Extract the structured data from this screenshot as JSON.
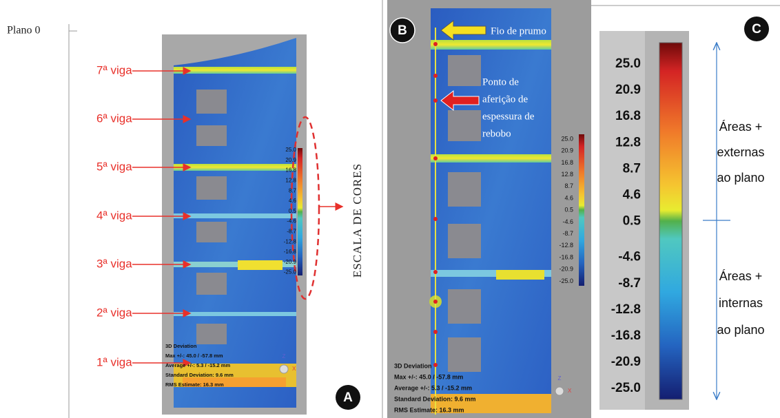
{
  "panel_a": {
    "plano": "Plano 0",
    "vigas": [
      "7ª viga",
      "6ª viga",
      "5ª viga",
      "4ª viga",
      "3ª viga",
      "2ª viga",
      "1ª viga"
    ],
    "scale_title": "ESCALA DE CORES",
    "label": "A"
  },
  "scale": [
    "25.0",
    "20.9",
    "16.8",
    "12.8",
    "8.7",
    "4.6",
    "0.5",
    "-4.6",
    "-8.7",
    "-12.8",
    "-16.8",
    "-20.9",
    "-25.0"
  ],
  "stats": [
    "3D Deviation",
    "Max +/-: 45.0 / -57.8 mm",
    "Average +/-: 5.3 / -15.2 mm",
    "Standard Deviation: 9.6 mm",
    "RMS Estimate: 16.3 mm"
  ],
  "axes": [
    "Z",
    "X"
  ],
  "panel_b": {
    "label": "B",
    "plumb": "Fio de prumo",
    "point": [
      "Ponto de",
      "aferição de",
      "espessura de",
      "rebobo"
    ]
  },
  "panel_c": {
    "label": "C",
    "external": [
      "Áreas +",
      "externas",
      "ao plano"
    ],
    "internal": [
      "Áreas +",
      "internas",
      "ao plano"
    ]
  }
}
